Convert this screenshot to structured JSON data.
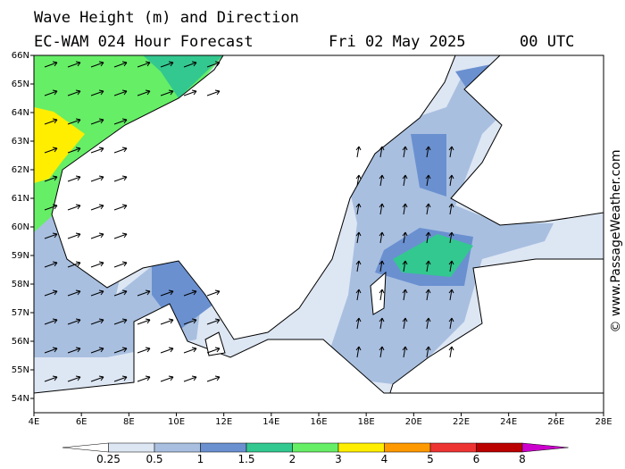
{
  "header": {
    "title": "Wave Height (m) and Direction",
    "model": "EC-WAM 024 Hour Forecast",
    "date": "Fri 02 May 2025",
    "time": "00 UTC"
  },
  "map": {
    "longitudes": [
      "4E",
      "6E",
      "8E",
      "10E",
      "12E",
      "14E",
      "16E",
      "18E",
      "20E",
      "22E",
      "24E",
      "26E",
      "28E"
    ],
    "latitudes": [
      "54N",
      "55N",
      "56N",
      "57N",
      "58N",
      "59N",
      "60N",
      "61N",
      "62N",
      "63N",
      "64N",
      "65N",
      "66N"
    ]
  },
  "legend": {
    "ticks": [
      0.25,
      0.5,
      1,
      1.5,
      2,
      3,
      4,
      5,
      6,
      8
    ],
    "colors": [
      "#ffffff",
      "#dde6f3",
      "#a8bfe0",
      "#6a90d0",
      "#33c890",
      "#66ee66",
      "#ffee00",
      "#ff9900",
      "#ee3333",
      "#bb0000",
      "#cc00cc"
    ]
  },
  "watermark": "© www.PassageWeather.com"
}
